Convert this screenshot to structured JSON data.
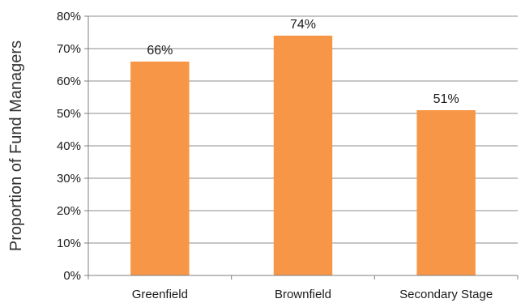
{
  "chart_data": {
    "type": "bar",
    "categories": [
      "Greenfield",
      "Brownfield",
      "Secondary Stage"
    ],
    "values": [
      66,
      74,
      51
    ],
    "data_labels": [
      "66%",
      "74%",
      "51%"
    ],
    "title": "",
    "xlabel": "",
    "ylabel": "Proportion of Fund Managers",
    "ylim": [
      0,
      80
    ],
    "yticks": [
      0,
      10,
      20,
      30,
      40,
      50,
      60,
      70,
      80
    ],
    "ytick_labels": [
      "0%",
      "10%",
      "20%",
      "30%",
      "40%",
      "50%",
      "60%",
      "70%",
      "80%"
    ],
    "grid": true,
    "legend": "none",
    "bar_color": "#f79646"
  }
}
